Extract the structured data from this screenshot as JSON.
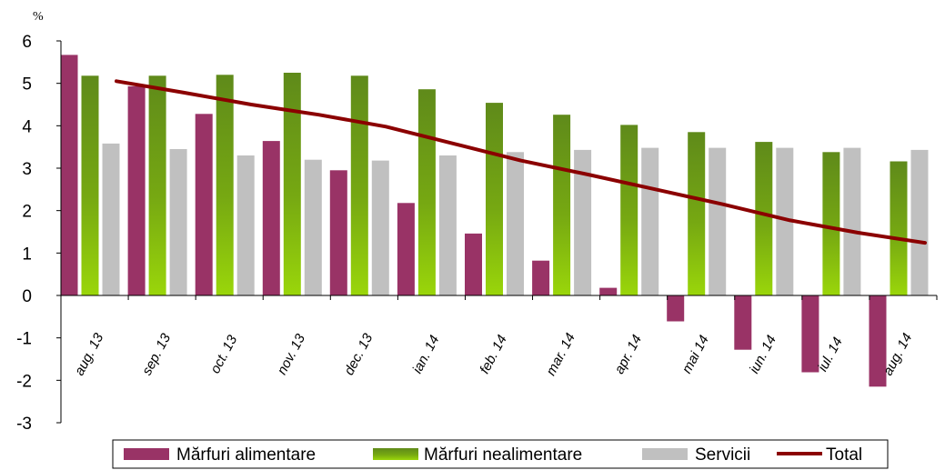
{
  "chart_data": {
    "type": "bar",
    "ylabel": "%",
    "ylim": [
      -3,
      6
    ],
    "yticks": [
      "6",
      "5",
      "4",
      "3",
      "2",
      "1",
      "0",
      "-1",
      "-2",
      "-3"
    ],
    "grid": false,
    "legend_position": "bottom",
    "categories": [
      "aug. 13",
      "sep. 13",
      "oct. 13",
      "nov. 13",
      "dec. 13",
      "ian. 14",
      "feb. 14",
      "mar. 14",
      "apr. 14",
      "mai 14",
      "iun. 14",
      "iul. 14",
      "aug. 14"
    ],
    "series": [
      {
        "name": "Mărfuri alimentare",
        "type": "bar",
        "color": "#993366",
        "values": [
          5.67,
          4.93,
          4.28,
          3.64,
          2.95,
          2.18,
          1.46,
          0.82,
          0.18,
          -0.61,
          -1.28,
          -1.81,
          -2.15
        ]
      },
      {
        "name": "Mărfuri nealimentare",
        "type": "bar",
        "color": "#6a9a10",
        "values": [
          5.18,
          5.18,
          5.2,
          5.25,
          5.18,
          4.86,
          4.54,
          4.26,
          4.02,
          3.85,
          3.62,
          3.38,
          3.16
        ]
      },
      {
        "name": "Servicii",
        "type": "bar",
        "color": "#c0c0c0",
        "values": [
          3.58,
          3.45,
          3.3,
          3.2,
          3.18,
          3.3,
          3.38,
          3.43,
          3.48,
          3.48,
          3.48,
          3.48,
          3.43
        ]
      },
      {
        "name": "Total",
        "type": "line",
        "color": "#8b0000",
        "values": [
          5.05,
          4.78,
          4.5,
          4.26,
          3.98,
          3.58,
          3.18,
          2.85,
          2.5,
          2.15,
          1.77,
          1.48,
          1.24
        ]
      }
    ]
  }
}
